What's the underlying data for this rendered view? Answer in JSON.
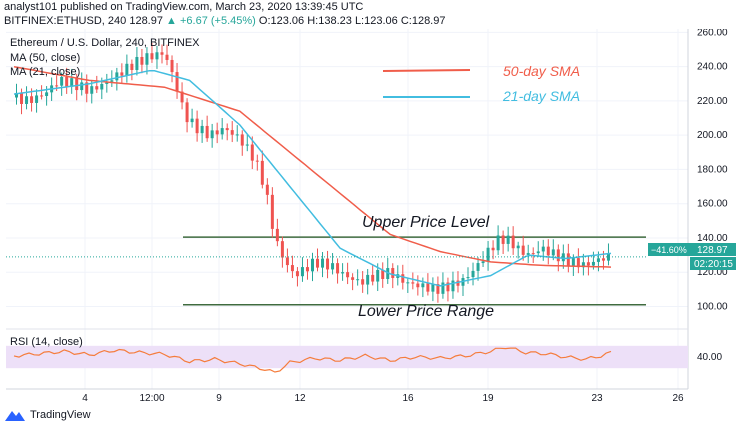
{
  "header": {
    "line1": "analyst101 published on TradingView.com, March 23, 2020 13:39:45 UTC",
    "symbol": "BITFINEX:ETHUSD, 240",
    "last": "128.97",
    "change": "▲ +6.67 (+5.45%)",
    "open": "O:123.06",
    "high": "H:138.23",
    "low": "L:123.06",
    "close": "C:128.97"
  },
  "legend": {
    "title": "Ethereum / U.S. Dollar, 240, BITFINEX",
    "ma50": "MA (50, close)",
    "ma21": "MA (21, close)",
    "rsi": "RSI (14, close)"
  },
  "annotations": {
    "sma50": "50-day SMA",
    "sma21": "21-day SMA",
    "upper": "Upper Price Level",
    "lower": "Lower Price Range"
  },
  "badges": {
    "pct": "−41.60%",
    "price": "128.97",
    "timer": "02:20:15"
  },
  "branding": "TradingView",
  "colors": {
    "up": "#26a69a",
    "down": "#ef5350",
    "ma50": "#f05d4a",
    "ma21": "#42bde0",
    "level": "#3f6b3f",
    "rsi_line": "#f57c3c",
    "rsi_band": "#ede0f8"
  },
  "chart_data": {
    "type": "candlestick",
    "title": "Ethereum / U.S. Dollar, 240, BITFINEX",
    "ylim": [
      88,
      262
    ],
    "y_ticks": [
      "260.00",
      "240.00",
      "220.00",
      "200.00",
      "180.00",
      "160.00",
      "140.00",
      "120.00",
      "100.00"
    ],
    "x_ticks": [
      "4",
      "12:00",
      "9",
      "12",
      "16",
      "19",
      "23",
      "26"
    ],
    "close_series_sampled": [
      [
        0,
        222
      ],
      [
        6,
        220
      ],
      [
        12,
        224
      ],
      [
        18,
        232
      ],
      [
        24,
        230
      ],
      [
        30,
        226
      ],
      [
        36,
        230
      ],
      [
        42,
        236
      ],
      [
        48,
        242
      ],
      [
        54,
        246
      ],
      [
        60,
        248
      ],
      [
        64,
        232
      ],
      [
        68,
        212
      ],
      [
        72,
        205
      ],
      [
        78,
        200
      ],
      [
        84,
        204
      ],
      [
        90,
        198
      ],
      [
        96,
        186
      ],
      [
        100,
        170
      ],
      [
        104,
        140
      ],
      [
        108,
        126
      ],
      [
        112,
        118
      ],
      [
        116,
        122
      ],
      [
        120,
        126
      ],
      [
        126,
        124
      ],
      [
        132,
        118
      ],
      [
        138,
        114
      ],
      [
        144,
        118
      ],
      [
        150,
        120
      ],
      [
        156,
        114
      ],
      [
        162,
        112
      ],
      [
        168,
        110
      ],
      [
        174,
        112
      ],
      [
        180,
        116
      ],
      [
        186,
        126
      ],
      [
        190,
        134
      ],
      [
        194,
        140
      ],
      [
        198,
        138
      ],
      [
        202,
        132
      ],
      [
        206,
        130
      ],
      [
        210,
        134
      ],
      [
        216,
        130
      ],
      [
        222,
        126
      ],
      [
        228,
        124
      ],
      [
        234,
        128
      ],
      [
        238,
        129
      ]
    ],
    "ma50_sampled": [
      [
        0,
        240
      ],
      [
        30,
        232
      ],
      [
        60,
        228
      ],
      [
        90,
        214
      ],
      [
        120,
        178
      ],
      [
        150,
        142
      ],
      [
        170,
        132
      ],
      [
        190,
        126
      ],
      [
        210,
        124
      ],
      [
        238,
        123
      ]
    ],
    "ma21_sampled": [
      [
        0,
        224
      ],
      [
        30,
        230
      ],
      [
        55,
        238
      ],
      [
        70,
        232
      ],
      [
        90,
        206
      ],
      [
        110,
        170
      ],
      [
        130,
        134
      ],
      [
        150,
        119
      ],
      [
        170,
        112
      ],
      [
        190,
        118
      ],
      [
        205,
        130
      ],
      [
        220,
        128
      ],
      [
        238,
        131
      ]
    ],
    "levels": {
      "upper": 140.5,
      "lower": 101
    },
    "last_price": 128.97,
    "rsi": {
      "label": "RSI (14, close)",
      "tick": "40.00",
      "band": [
        30,
        70
      ],
      "values_sampled": [
        [
          0,
          52
        ],
        [
          10,
          56
        ],
        [
          20,
          60
        ],
        [
          30,
          54
        ],
        [
          40,
          62
        ],
        [
          50,
          58
        ],
        [
          60,
          55
        ],
        [
          70,
          42
        ],
        [
          80,
          46
        ],
        [
          90,
          38
        ],
        [
          100,
          28
        ],
        [
          104,
          22
        ],
        [
          110,
          40
        ],
        [
          120,
          48
        ],
        [
          130,
          44
        ],
        [
          140,
          52
        ],
        [
          150,
          44
        ],
        [
          160,
          50
        ],
        [
          170,
          48
        ],
        [
          180,
          52
        ],
        [
          190,
          60
        ],
        [
          196,
          68
        ],
        [
          204,
          58
        ],
        [
          212,
          56
        ],
        [
          220,
          50
        ],
        [
          228,
          46
        ],
        [
          234,
          52
        ],
        [
          238,
          58
        ]
      ]
    }
  }
}
